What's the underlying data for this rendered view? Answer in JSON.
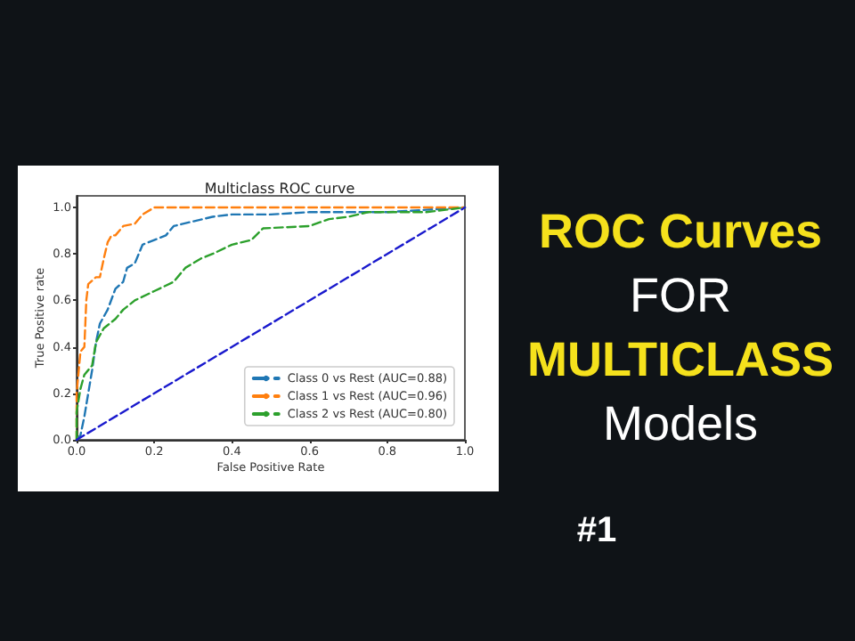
{
  "chart_data": {
    "type": "line",
    "title": "Multiclass ROC curve",
    "xlabel": "False Positive Rate",
    "ylabel": "True Positive rate",
    "annotations": [
      "ROC Curves",
      "FOR",
      "MULTICLASS",
      "Models",
      "#1"
    ],
    "xlim": [
      0,
      1
    ],
    "ylim": [
      0,
      1.05
    ],
    "xticks": [
      {
        "value": 0,
        "label": "0.0"
      },
      {
        "value": 0.2,
        "label": "0.2"
      },
      {
        "value": 0.4,
        "label": "0.4"
      },
      {
        "value": 0.6,
        "label": "0.6"
      },
      {
        "value": 0.8,
        "label": "0.8"
      },
      {
        "value": 1,
        "label": "1.0"
      }
    ],
    "yticks": [
      {
        "value": 0,
        "label": "0.0"
      },
      {
        "value": 0.2,
        "label": "0.2"
      },
      {
        "value": 0.4,
        "label": "0.4"
      },
      {
        "value": 0.6,
        "label": "0.6"
      },
      {
        "value": 0.8,
        "label": "0.8"
      },
      {
        "value": 1,
        "label": "1.0"
      }
    ],
    "grid": false,
    "legend": "bottom right",
    "marker": "none",
    "line_style": "dashed",
    "series": [
      {
        "name": "Class 0 vs Rest (AUC=0.88)",
        "color": "#1f77b4",
        "x": [
          0,
          0.01,
          0.02,
          0.03,
          0.04,
          0.05,
          0.06,
          0.08,
          0.1,
          0.12,
          0.13,
          0.15,
          0.17,
          0.2,
          0.23,
          0.25,
          0.3,
          0.35,
          0.4,
          0.5,
          0.6,
          0.8,
          0.9,
          1
        ],
        "values": [
          0,
          0.02,
          0.1,
          0.2,
          0.3,
          0.42,
          0.5,
          0.56,
          0.65,
          0.68,
          0.74,
          0.76,
          0.84,
          0.86,
          0.88,
          0.92,
          0.94,
          0.96,
          0.97,
          0.97,
          0.98,
          0.98,
          0.99,
          1
        ]
      },
      {
        "name": "Class 1 vs Rest (AUC=0.96)",
        "color": "#ff7f0e",
        "x": [
          0,
          0,
          0.01,
          0.02,
          0.025,
          0.03,
          0.05,
          0.06,
          0.07,
          0.08,
          0.09,
          0.1,
          0.12,
          0.15,
          0.17,
          0.2,
          1
        ],
        "values": [
          0,
          0.2,
          0.38,
          0.4,
          0.6,
          0.67,
          0.7,
          0.7,
          0.78,
          0.85,
          0.88,
          0.88,
          0.92,
          0.93,
          0.97,
          1,
          1
        ]
      },
      {
        "name": "Class 2 vs Rest (AUC=0.80)",
        "color": "#2ca02c",
        "x": [
          0,
          0,
          0.01,
          0.02,
          0.04,
          0.05,
          0.07,
          0.1,
          0.12,
          0.15,
          0.2,
          0.25,
          0.28,
          0.32,
          0.35,
          0.4,
          0.45,
          0.48,
          0.6,
          0.65,
          0.7,
          0.75,
          0.9,
          1
        ],
        "values": [
          0,
          0.12,
          0.22,
          0.28,
          0.32,
          0.42,
          0.48,
          0.52,
          0.56,
          0.6,
          0.64,
          0.68,
          0.74,
          0.78,
          0.8,
          0.84,
          0.86,
          0.91,
          0.92,
          0.95,
          0.96,
          0.98,
          0.98,
          1
        ]
      },
      {
        "color": "#1a1acd",
        "x": [
          0,
          1
        ],
        "values": [
          0,
          1
        ]
      }
    ]
  }
}
